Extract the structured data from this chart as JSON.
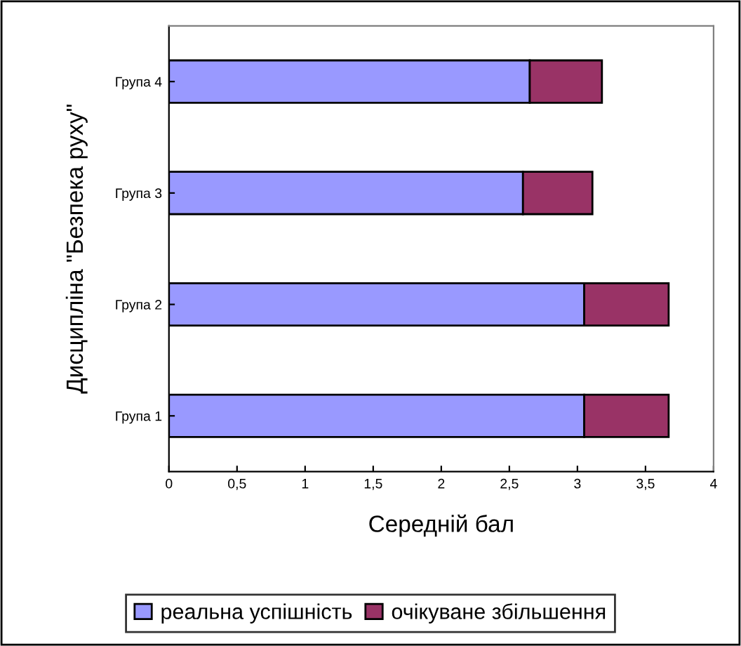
{
  "chart_data": {
    "type": "bar",
    "orientation": "horizontal",
    "stacked": true,
    "categories": [
      "Група 4",
      "Група 3",
      "Група 2",
      "Група 1"
    ],
    "series": [
      {
        "name": "реальна успішність",
        "color": "#9999ff",
        "values": [
          2.65,
          2.6,
          3.05,
          3.05
        ]
      },
      {
        "name": "очікуване збільшення",
        "color": "#993366",
        "values": [
          0.53,
          0.51,
          0.62,
          0.62
        ]
      }
    ],
    "xlim": [
      0,
      4
    ],
    "xticks": [
      0,
      {
        "value": 0.5,
        "label": "0,5"
      },
      1,
      {
        "value": 1.5,
        "label": "1,5"
      },
      2,
      {
        "value": 2.5,
        "label": "2,5"
      },
      3,
      {
        "value": 3.5,
        "label": "3,5"
      },
      4
    ],
    "xlabel": "Середній бал",
    "ylabel": "Дисципліна \"Безпека руху\"",
    "grid": false,
    "legend": "bottom"
  }
}
